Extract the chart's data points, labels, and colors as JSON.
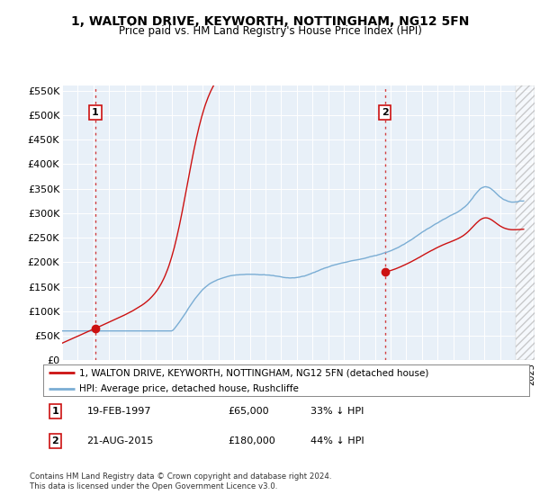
{
  "title": "1, WALTON DRIVE, KEYWORTH, NOTTINGHAM, NG12 5FN",
  "subtitle": "Price paid vs. HM Land Registry's House Price Index (HPI)",
  "ylim": [
    0,
    560000
  ],
  "xlim_start": 1995.0,
  "xlim_end": 2025.2,
  "yticks": [
    0,
    50000,
    100000,
    150000,
    200000,
    250000,
    300000,
    350000,
    400000,
    450000,
    500000,
    550000
  ],
  "ytick_labels": [
    "£0",
    "£50K",
    "£100K",
    "£150K",
    "£200K",
    "£250K",
    "£300K",
    "£350K",
    "£400K",
    "£450K",
    "£500K",
    "£550K"
  ],
  "sale1_date": 1997.13,
  "sale1_price": 65000,
  "sale2_date": 2015.64,
  "sale2_price": 180000,
  "hpi_color": "#7aadd4",
  "price_color": "#cc1111",
  "plot_bg_color": "#e8f0f8",
  "hatch_start": 2024.0,
  "legend_label_price": "1, WALTON DRIVE, KEYWORTH, NOTTINGHAM, NG12 5FN (detached house)",
  "legend_label_hpi": "HPI: Average price, detached house, Rushcliffe",
  "footer": "Contains HM Land Registry data © Crown copyright and database right 2024.\nThis data is licensed under the Open Government Licence v3.0."
}
